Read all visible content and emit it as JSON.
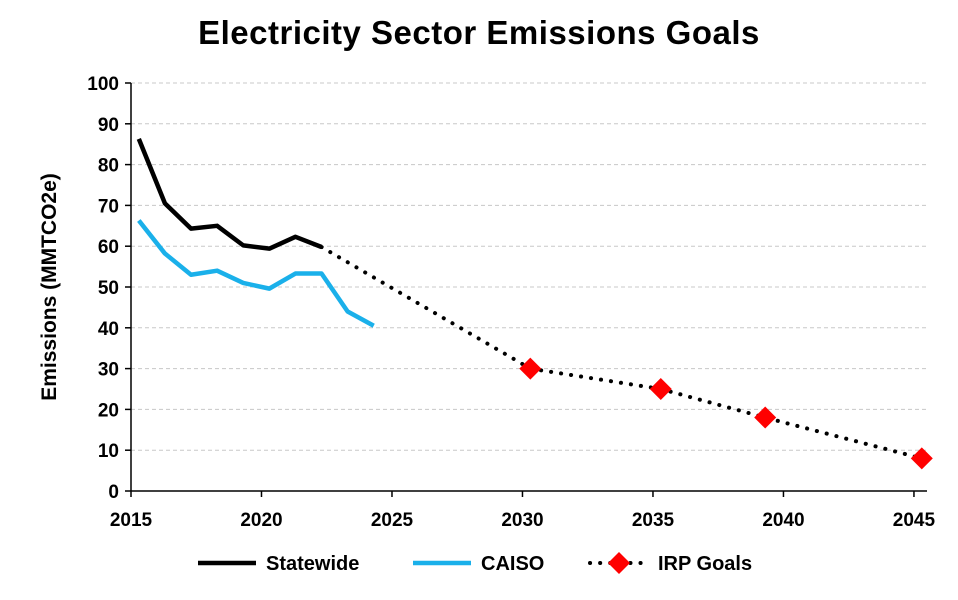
{
  "chart_data": {
    "type": "line",
    "title": "Electricity Sector Emissions Goals",
    "xlabel": "",
    "ylabel": "Emissions (MMTCO2e)",
    "xlim": [
      2015,
      2045.5
    ],
    "ylim": [
      0,
      100
    ],
    "xticks": [
      2015,
      2020,
      2025,
      2030,
      2035,
      2040,
      2045
    ],
    "yticks": [
      0,
      10,
      20,
      30,
      40,
      50,
      60,
      70,
      80,
      90,
      100
    ],
    "grid": "horizontal dashed",
    "legend_position": "bottom",
    "series": [
      {
        "name": "Statewide",
        "color": "#000000",
        "style": "solid",
        "x": [
          2015.3,
          2016.3,
          2017.3,
          2018.3,
          2019.3,
          2020.3,
          2021.3,
          2022.3
        ],
        "values": [
          86.3,
          70.5,
          64.3,
          65.0,
          60.2,
          59.4,
          62.3,
          59.8
        ]
      },
      {
        "name": "CAISO",
        "color": "#1ab0ea",
        "style": "solid",
        "x": [
          2015.3,
          2016.3,
          2017.3,
          2018.3,
          2019.3,
          2020.3,
          2021.3,
          2022.3,
          2023.3,
          2024.3
        ],
        "values": [
          66.3,
          58.2,
          53.0,
          54.0,
          51.0,
          49.6,
          53.3,
          53.3,
          44.0,
          40.5
        ]
      },
      {
        "name": "IRP Goals",
        "color": "#000000",
        "marker_color": "#ff0000",
        "style": "dotted",
        "x": [
          2022.3,
          2030.3,
          2035.3,
          2039.3,
          2045.3
        ],
        "values": [
          59.8,
          30,
          25,
          18,
          8
        ],
        "markers_from_index": 1
      }
    ]
  }
}
